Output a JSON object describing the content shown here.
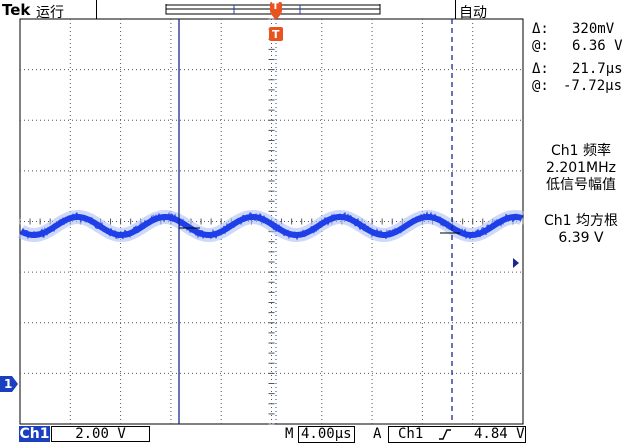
{
  "header": {
    "brand": "Tek",
    "run_status": "运行",
    "trigger_mode": "自动"
  },
  "cursor_readout": {
    "voltage_delta_symbol": "Δ:",
    "voltage_delta": "320mV",
    "voltage_at_symbol": "@:",
    "voltage_at": "6.36 V",
    "time_delta_symbol": "Δ:",
    "time_delta": "21.7µs",
    "time_at_symbol": "@:",
    "time_at": "-7.72µs"
  },
  "measurements": [
    {
      "title": "Ch1 频率",
      "value": "2.201MHz",
      "note": "低信号幅值"
    },
    {
      "title": "Ch1 均方根",
      "value": "6.39 V"
    }
  ],
  "markers": {
    "trigger_marker": "T",
    "channel_marker": "1"
  },
  "status_bar": {
    "channel_label": "Ch1",
    "volts_per_div": "2.00 V",
    "timebase_prefix": "M",
    "timebase": "4.00µs",
    "trigger_prefix": "A",
    "trigger_source": "Ch1",
    "trigger_slope_icon": "rising-edge-icon",
    "trigger_level": "4.84 V"
  },
  "colors": {
    "waveform": "#1f3fe8",
    "trigger_marker": "#e8531f",
    "channel_tag": "#1a3fbf",
    "cursor": "#1a2a8a"
  }
}
